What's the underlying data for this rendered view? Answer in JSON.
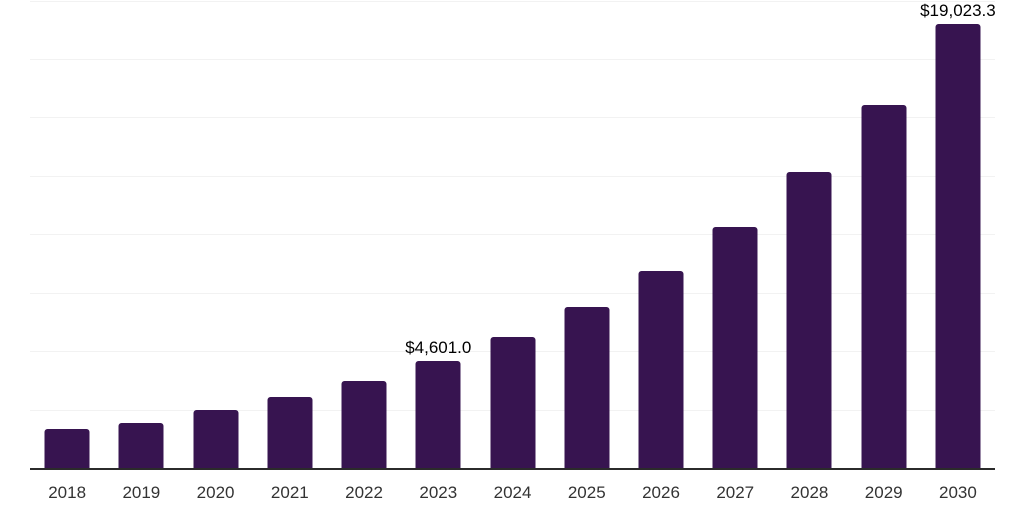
{
  "chart_data": {
    "type": "bar",
    "title": "",
    "xlabel": "",
    "ylabel": "",
    "categories": [
      "2018",
      "2019",
      "2020",
      "2021",
      "2022",
      "2023",
      "2024",
      "2025",
      "2026",
      "2027",
      "2028",
      "2029",
      "2030"
    ],
    "values": [
      1710,
      1950,
      2520,
      3080,
      3760,
      4601.0,
      5630,
      6910,
      8460,
      10360,
      12700,
      15570,
      19023.3
    ],
    "data_labels": {
      "2023": "$4,601.0",
      "2030": "$19,023.3"
    },
    "ylim": [
      0,
      20000
    ],
    "gridline_step": 2500,
    "grid": "horizontal",
    "legend": "none",
    "colors": {
      "bar": "#371450",
      "gridline": "#f2f2f2",
      "axis_line": "#2b2b2b",
      "tick_label": "#333333",
      "data_label": "#000000",
      "background": "#ffffff"
    }
  }
}
